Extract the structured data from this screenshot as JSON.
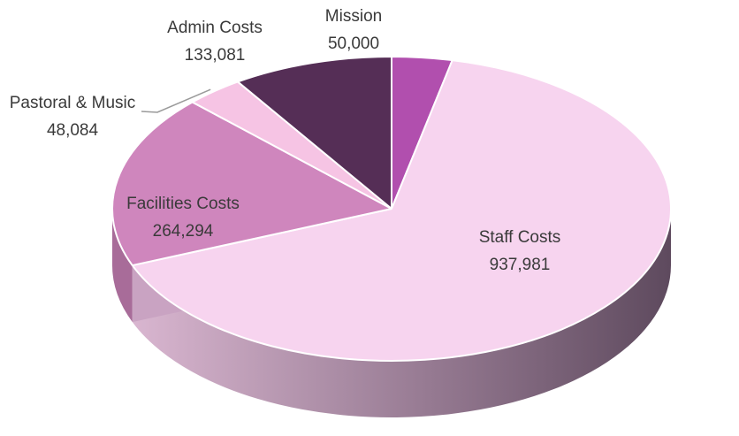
{
  "chart_data": {
    "type": "pie",
    "style": "3d",
    "title": "",
    "categories": [
      "Mission",
      "Staff Costs",
      "Facilities Costs",
      "Pastoral & Music",
      "Admin Costs"
    ],
    "values": [
      50000,
      937981,
      264294,
      48084,
      133081
    ],
    "value_labels": [
      "50,000",
      "937,981",
      "264,294",
      "48,084",
      "133,081"
    ],
    "colors": [
      "#b14fae",
      "#f7d4ef",
      "#cf86bd",
      "#f6c4e4",
      "#552e56"
    ],
    "side_colors": [
      "#7b3a78",
      "#b998b7",
      "#a86c99",
      "#b88aae",
      "#3b2040"
    ]
  }
}
